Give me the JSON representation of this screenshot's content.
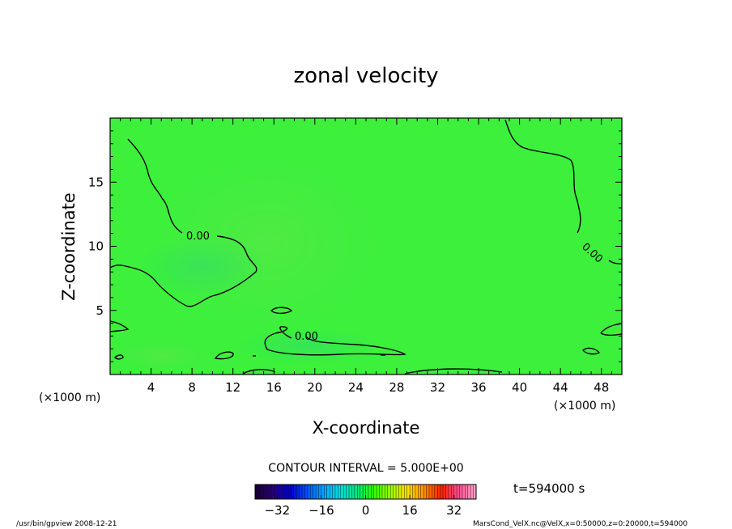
{
  "chart_data": {
    "type": "heatmap",
    "title": "zonal velocity",
    "xlabel": "X-coordinate",
    "ylabel": "Z-coordinate",
    "x_unit_label": "(×1000 m)",
    "x_unit_label_right": "(×1000 m)",
    "xlim": [
      0,
      50
    ],
    "ylim": [
      0,
      20
    ],
    "x_ticks": [
      "4",
      "8",
      "12",
      "16",
      "20",
      "24",
      "28",
      "32",
      "36",
      "40",
      "44",
      "48"
    ],
    "y_ticks": [
      "5",
      "10",
      "15"
    ],
    "contour_labels": [
      "0.00",
      "0.00",
      "0.00"
    ],
    "contour_interval_text": "CONTOUR INTERVAL = 5.000E+00",
    "time_text": "t=594000 s",
    "colorbar": {
      "ticks": [
        "−32",
        "−16",
        "0",
        "16",
        "32"
      ],
      "range": [
        -40,
        40
      ],
      "colors": [
        "#1a0033",
        "#2a007a",
        "#0000c8",
        "#0050ff",
        "#00a8ff",
        "#00e0e0",
        "#00e67a",
        "#33ff00",
        "#9cff00",
        "#ffe000",
        "#ff8c00",
        "#ff2000",
        "#ff4a8c",
        "#ff9ec8"
      ]
    },
    "field_color": "#3cf03c",
    "contour_color": "#000000",
    "grid": false,
    "footer_left": "/usr/bin/gpview  2008-12-21",
    "footer_right": "MarsCond_VelX.nc@VelX,x=0:50000,z=0:20000,t=594000"
  }
}
